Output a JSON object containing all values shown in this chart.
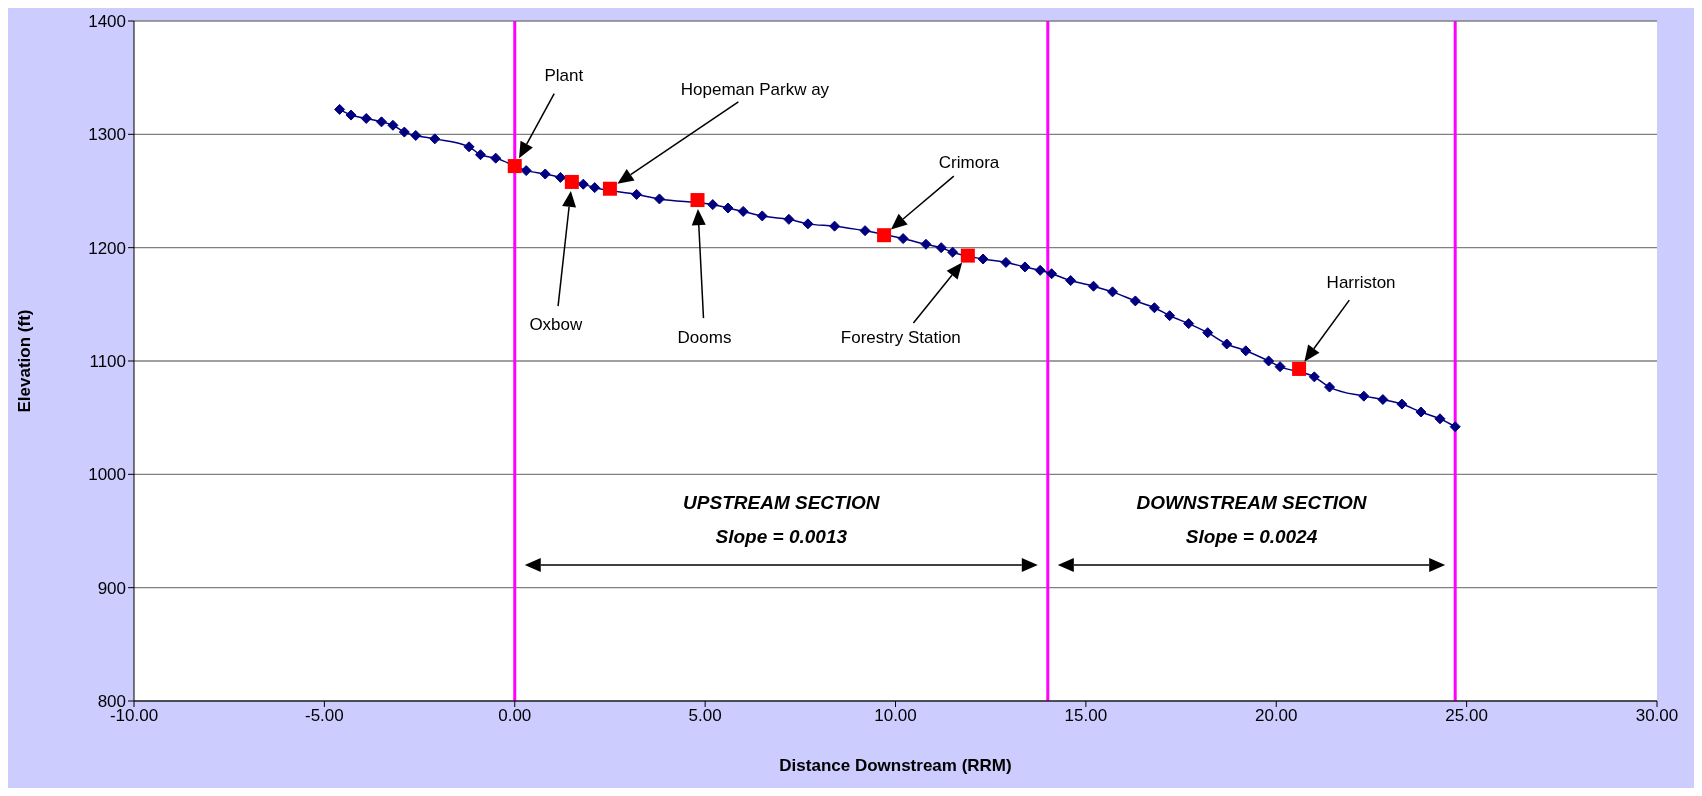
{
  "chart_data": {
    "type": "line",
    "xlabel": "Distance Downstream (RRM)",
    "ylabel": "Elevation (ft)",
    "xlim": [
      -10,
      30
    ],
    "ylim": [
      800,
      1400
    ],
    "xticks": [
      {
        "value": -10,
        "label": "-10.00"
      },
      {
        "value": -5,
        "label": "-5.00"
      },
      {
        "value": 0,
        "label": "0.00"
      },
      {
        "value": 5,
        "label": "5.00"
      },
      {
        "value": 10,
        "label": "10.00"
      },
      {
        "value": 15,
        "label": "15.00"
      },
      {
        "value": 20,
        "label": "20.00"
      },
      {
        "value": 25,
        "label": "25.00"
      },
      {
        "value": 30,
        "label": "30.00"
      }
    ],
    "yticks": [
      800,
      900,
      1000,
      1100,
      1200,
      1300,
      1400
    ],
    "grid": "y",
    "legend": false,
    "series": [
      {
        "marker": "diamond",
        "color": "#000080",
        "x": [
          -4.6,
          -4.3,
          -3.9,
          -3.5,
          -3.2,
          -2.9,
          -2.6,
          -2.1,
          -1.2,
          -0.9,
          -0.5,
          0.3,
          0.8,
          1.2,
          1.8,
          2.1,
          3.2,
          3.8,
          5.2,
          5.6,
          6.0,
          6.5,
          7.2,
          7.7,
          8.4,
          9.2,
          10.2,
          10.8,
          11.2,
          11.5,
          12.3,
          12.9,
          13.4,
          13.8,
          14.1,
          14.6,
          15.2,
          15.7,
          16.3,
          16.8,
          17.2,
          17.7,
          18.2,
          18.7,
          19.2,
          19.8,
          20.1,
          21.0,
          21.4,
          22.3,
          22.8,
          23.3,
          23.8,
          24.3,
          24.7
        ],
        "values": [
          1322,
          1317,
          1314,
          1311,
          1308,
          1302,
          1299,
          1296,
          1289,
          1282,
          1279,
          1268,
          1265,
          1262,
          1256,
          1253,
          1247,
          1243,
          1238,
          1235,
          1232,
          1228,
          1225,
          1221,
          1219,
          1215,
          1208,
          1203,
          1200,
          1196,
          1190,
          1187,
          1183,
          1180,
          1177,
          1171,
          1166,
          1161,
          1153,
          1147,
          1140,
          1133,
          1125,
          1115,
          1109,
          1100,
          1095,
          1086,
          1077,
          1069,
          1066,
          1062,
          1055,
          1049,
          1042
        ]
      },
      {
        "type": "scatter",
        "marker": "square",
        "color": "#ff0000",
        "x": [
          0,
          1.5,
          2.5,
          4.8,
          9.7,
          11.9,
          20.6
        ],
        "values": [
          1272,
          1258,
          1252,
          1242,
          1211,
          1193,
          1093
        ]
      }
    ],
    "ref_lines": [
      {
        "axis": "x",
        "value": 0,
        "color": "#ff00ff"
      },
      {
        "axis": "x",
        "value": 14,
        "color": "#ff00ff"
      },
      {
        "axis": "x",
        "value": 24.7,
        "color": "#ff00ff"
      }
    ],
    "annotations": [
      "Plant",
      "Oxbow",
      "Hopeman Parkw ay",
      "Dooms",
      "Crimora",
      "Forestry Station",
      "Harriston",
      "UPSTREAM SECTION",
      "Slope = 0.0013",
      "DOWNSTREAM SECTION",
      "Slope = 0.0024"
    ]
  }
}
